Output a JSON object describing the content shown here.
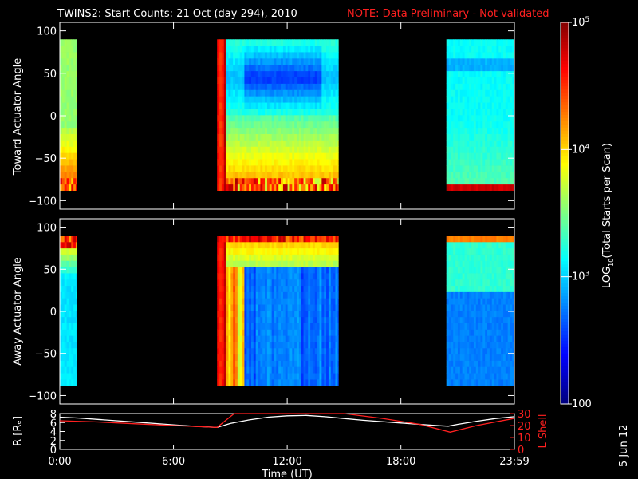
{
  "header": {
    "title": "TWINS2: Start Counts: 21 Oct (day 294), 2010",
    "note": "NOTE: Data Preliminary - Not validated"
  },
  "footer_stamp": "5 Jun 12",
  "colors": {
    "background": "#000000",
    "axis": "#ffffff",
    "r_line": "#ffffff",
    "lshell_line": "#ff2020",
    "note_text": "#ff2020"
  },
  "chart_data": [
    {
      "type": "heatmap",
      "name": "toward",
      "ylabel": "Toward Actuator Angle",
      "ylim": [
        -110,
        110
      ],
      "y_ticks": [
        "100",
        "50",
        "0",
        "−50",
        "−100"
      ],
      "y_tick_values": [
        100,
        50,
        0,
        -50,
        -100
      ],
      "angle_range": [
        -88,
        90
      ],
      "x_unit": "hours",
      "data_blocks": [
        [
          0.0,
          0.9
        ],
        [
          8.3,
          14.7
        ],
        [
          20.4,
          23.99
        ]
      ],
      "colormap": "jet",
      "log_range": [
        2,
        5
      ]
    },
    {
      "type": "heatmap",
      "name": "away",
      "ylabel": "Away Actuator Angle",
      "ylim": [
        -110,
        110
      ],
      "y_ticks": [
        "100",
        "50",
        "0",
        "−50",
        "−100"
      ],
      "y_tick_values": [
        100,
        50,
        0,
        -50,
        -100
      ],
      "angle_range": [
        -88,
        90
      ],
      "x_unit": "hours",
      "data_blocks": [
        [
          0.0,
          0.9
        ],
        [
          8.3,
          14.7
        ],
        [
          20.4,
          23.99
        ]
      ],
      "colormap": "jet",
      "log_range": [
        2,
        5
      ]
    },
    {
      "type": "line",
      "name": "orbit",
      "ylabel_left": "R [Rₑ]",
      "ylabel_right": "L Shell",
      "ylim_left": [
        0,
        8
      ],
      "ylim_right": [
        0,
        30
      ],
      "left_ticks": [
        "0",
        "2",
        "4",
        "6",
        "8"
      ],
      "right_ticks": [
        "0",
        "10",
        "20",
        "30"
      ],
      "xlabel": "Time (UT)",
      "xlim": [
        0,
        23.99
      ],
      "x_ticks": [
        "0:00",
        "6:00",
        "12:00",
        "18:00",
        "23:59"
      ],
      "x_tick_values": [
        0,
        6,
        12,
        18,
        23.99
      ],
      "series": [
        {
          "name": "R",
          "axis": "left",
          "x": [
            0,
            1,
            2,
            3,
            4,
            5,
            6,
            7,
            8.3,
            9,
            10,
            11,
            12,
            13,
            14,
            15,
            16,
            17,
            18,
            19,
            20,
            20.5,
            21,
            22,
            23,
            23.99
          ],
          "y": [
            7.2,
            7.0,
            6.7,
            6.4,
            6.1,
            5.8,
            5.5,
            5.2,
            4.9,
            5.8,
            6.6,
            7.2,
            7.5,
            7.6,
            7.3,
            6.9,
            6.5,
            6.2,
            5.9,
            5.6,
            5.3,
            5.2,
            5.6,
            6.3,
            6.9,
            7.3
          ]
        },
        {
          "name": "L Shell",
          "axis": "right",
          "x": [
            0,
            2,
            4,
            6,
            8.3,
            9.2,
            15.0,
            17,
            19,
            20.6,
            22,
            23.99
          ],
          "y": [
            24,
            23,
            21.5,
            20,
            18.5,
            30,
            30,
            26,
            21,
            14.5,
            20,
            26
          ]
        }
      ]
    }
  ],
  "colorbar": {
    "label": "LOG10(Total Starts per Scan)",
    "label_main": "LOG",
    "label_sub": "10",
    "label_rest": "(Total Starts per Scan)",
    "ticks": [
      {
        "base": "10",
        "exp": "5",
        "value": 5
      },
      {
        "base": "10",
        "exp": "4",
        "value": 4
      },
      {
        "base": "10",
        "exp": "3",
        "value": 3
      },
      {
        "base": "100",
        "exp": "",
        "value": 2
      }
    ]
  }
}
